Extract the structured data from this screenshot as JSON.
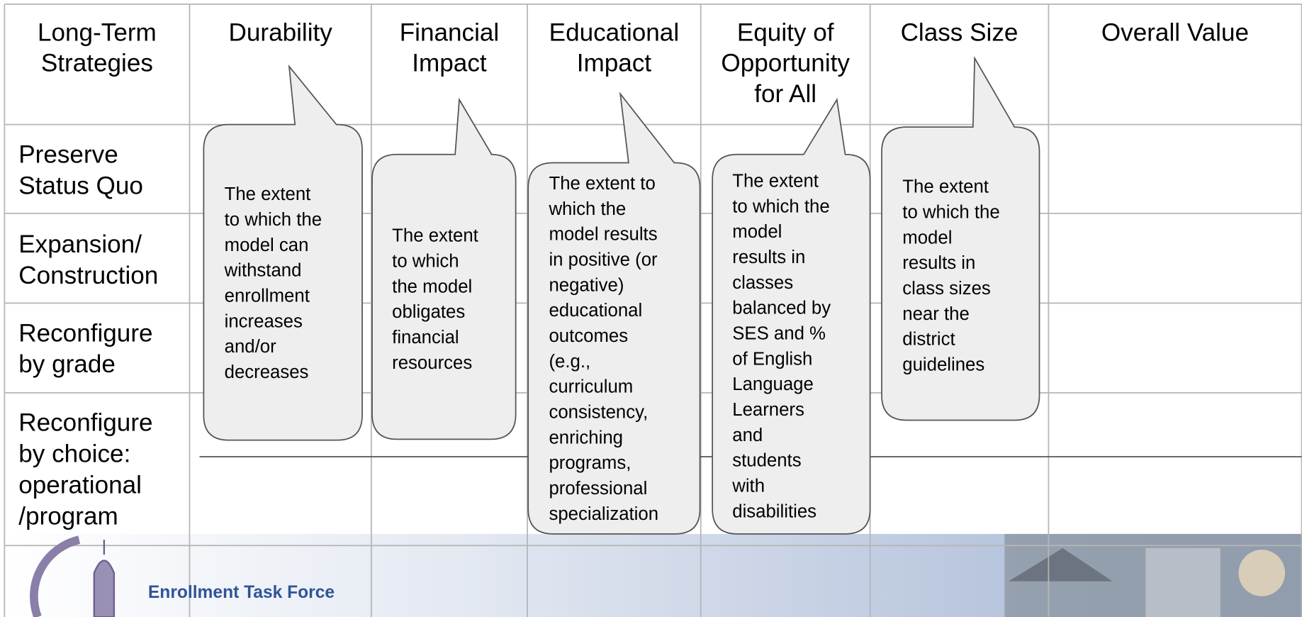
{
  "table": {
    "headers": [
      [
        "Long-Term",
        "Strategies"
      ],
      [
        "Durability"
      ],
      [
        "Financial",
        "Impact"
      ],
      [
        "Educational",
        "Impact"
      ],
      [
        "Equity of",
        "Opportunity",
        "for All"
      ],
      [
        "Class Size"
      ],
      [
        "Overall Value"
      ]
    ],
    "rows": [
      [
        "Preserve",
        "Status Quo"
      ],
      [
        "Expansion/",
        "Construction"
      ],
      [
        "Reconfigure",
        "by grade"
      ],
      [
        "Reconfigure",
        "by choice:",
        "operational",
        "/program"
      ]
    ]
  },
  "callouts": [
    [
      "The extent",
      "to which the",
      "model can",
      "withstand",
      "enrollment",
      "increases",
      "and/or",
      "decreases"
    ],
    [
      "The extent",
      "to which",
      "the model",
      "obligates",
      "financial",
      "resources"
    ],
    [
      "The extent to",
      "which the",
      "model results",
      "in positive (or",
      "negative)",
      "educational",
      "outcomes",
      "(e.g.,",
      "curriculum",
      "consistency,",
      "enriching",
      "programs,",
      "professional",
      "specialization"
    ],
    [
      "The extent",
      "to which the",
      "model",
      "results in",
      "classes",
      "balanced by",
      "SES and %",
      "of English",
      "Language",
      "Learners",
      "and",
      "students",
      "with",
      "disabilities"
    ],
    [
      "The extent",
      "to which the",
      "model",
      "results in",
      "class sizes",
      "near the",
      "district",
      "guidelines"
    ]
  ],
  "footer": {
    "title": "Enrollment Task Force"
  }
}
